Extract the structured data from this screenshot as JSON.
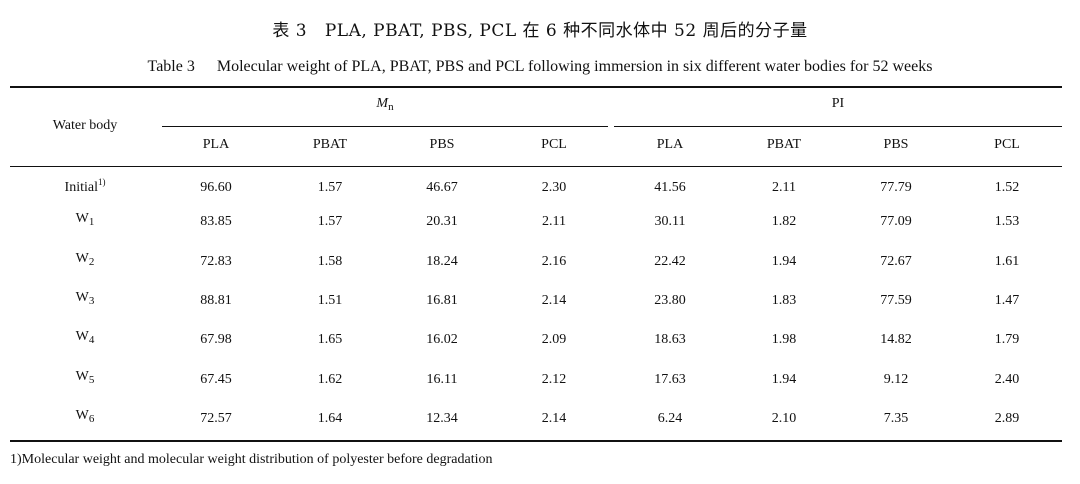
{
  "caption": {
    "zh_label": "表 3",
    "zh_text": "PLA, PBAT, PBS, PCL 在 6 种不同水体中 52 周后的分子量",
    "en_label": "Table 3",
    "en_text": "Molecular weight of PLA, PBAT, PBS and PCL following immersion in six different water bodies for 52 weeks"
  },
  "header": {
    "row_label": "Water body",
    "group1_main": "M",
    "group1_sub": "n",
    "group2": "PI",
    "columns": [
      "PLA",
      "PBAT",
      "PBS",
      "PCL",
      "PLA",
      "PBAT",
      "PBS",
      "PCL"
    ]
  },
  "rows": [
    {
      "label": "Initial",
      "sub": "",
      "sup": "1)",
      "values": [
        "96.60",
        "1.57",
        "46.67",
        "2.30",
        "41.56",
        "2.11",
        "77.79",
        "1.52"
      ]
    },
    {
      "label": "W",
      "sub": "1",
      "sup": "",
      "values": [
        "83.85",
        "1.57",
        "20.31",
        "2.11",
        "30.11",
        "1.82",
        "77.09",
        "1.53"
      ]
    },
    {
      "label": "W",
      "sub": "2",
      "sup": "",
      "values": [
        "72.83",
        "1.58",
        "18.24",
        "2.16",
        "22.42",
        "1.94",
        "72.67",
        "1.61"
      ]
    },
    {
      "label": "W",
      "sub": "3",
      "sup": "",
      "values": [
        "88.81",
        "1.51",
        "16.81",
        "2.14",
        "23.80",
        "1.83",
        "77.59",
        "1.47"
      ]
    },
    {
      "label": "W",
      "sub": "4",
      "sup": "",
      "values": [
        "67.98",
        "1.65",
        "16.02",
        "2.09",
        "18.63",
        "1.98",
        "14.82",
        "1.79"
      ]
    },
    {
      "label": "W",
      "sub": "5",
      "sup": "",
      "values": [
        "67.45",
        "1.62",
        "16.11",
        "2.12",
        "17.63",
        "1.94",
        "9.12",
        "2.40"
      ]
    },
    {
      "label": "W",
      "sub": "6",
      "sup": "",
      "values": [
        "72.57",
        "1.64",
        "12.34",
        "2.14",
        "6.24",
        "2.10",
        "7.35",
        "2.89"
      ]
    }
  ],
  "footnote": {
    "mark": "1)",
    "text": "Molecular weight and molecular weight distribution of polyester before degradation"
  }
}
